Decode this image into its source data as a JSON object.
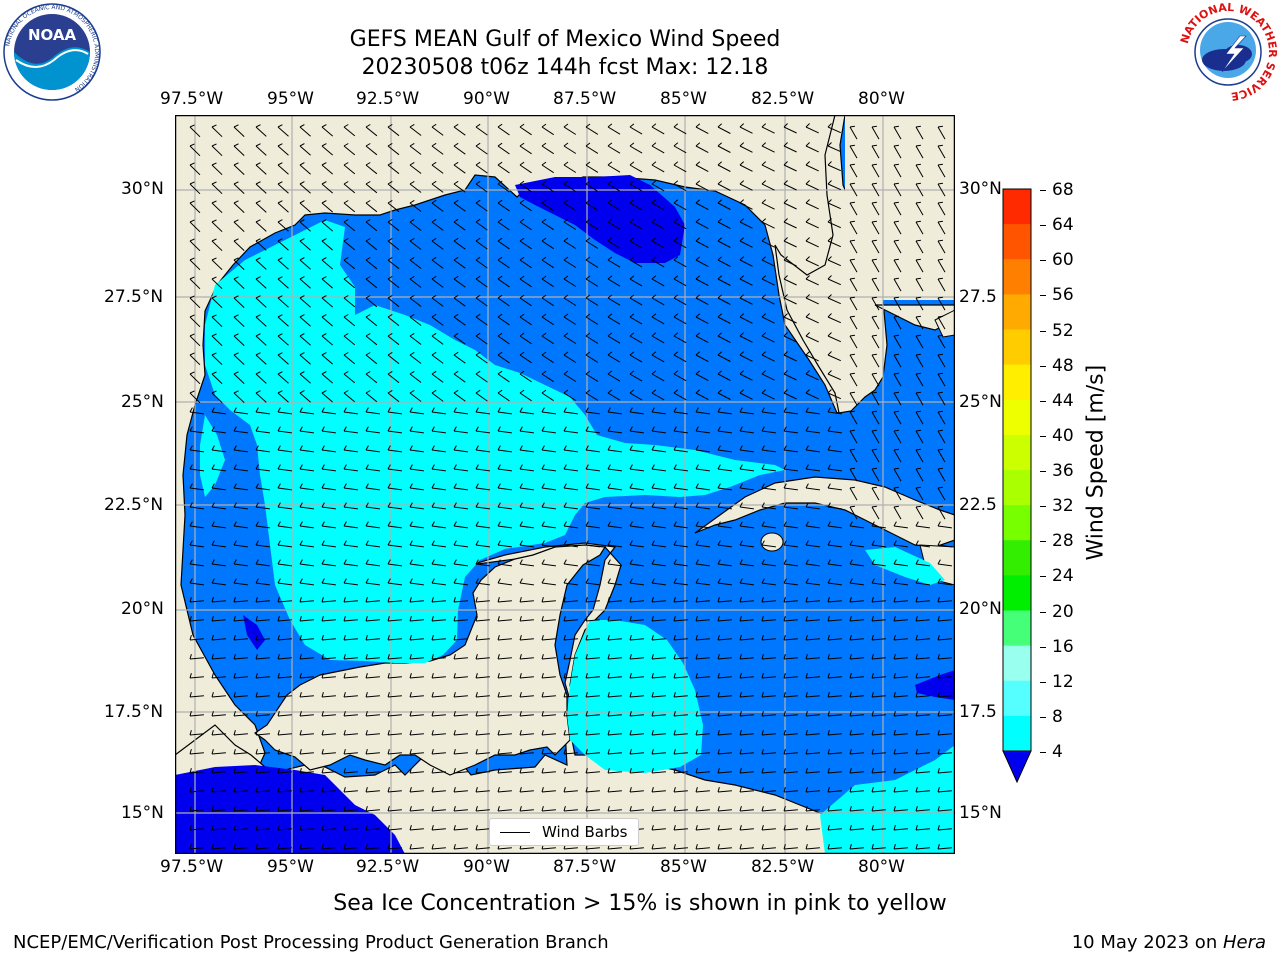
{
  "title": {
    "line1": "GEFS MEAN Gulf of Mexico Wind Speed",
    "line2": "20230508 t06z 144h fcst   Max: 12.18"
  },
  "map": {
    "lon_labels": [
      "97.5°W",
      "95°W",
      "92.5°W",
      "90°W",
      "87.5°W",
      "85°W",
      "82.5°W",
      "80°W"
    ],
    "lat_labels": [
      "30°N",
      "27.5°N",
      "25°N",
      "22.5°N",
      "20°N",
      "17.5°N",
      "15°N"
    ],
    "lat_labels_right": [
      "30°N",
      "27.5",
      "25°N",
      "22.5",
      "20°N",
      "17.5",
      "15°N"
    ],
    "colors": {
      "land": "#efedda",
      "speed_4_8": "#0077ff",
      "speed_8_12": "#00ffff",
      "speed_lt_4": "#0000ee"
    },
    "legend_label": "Wind Barbs"
  },
  "colorbar": {
    "label": "Wind Speed [m/s]",
    "ticks": [
      "68",
      "64",
      "60",
      "56",
      "52",
      "48",
      "44",
      "40",
      "36",
      "32",
      "28",
      "24",
      "20",
      "16",
      "12",
      "8",
      "4"
    ],
    "colors": [
      "#ff0000",
      "#ff2a00",
      "#ff5500",
      "#ff8000",
      "#ffaa00",
      "#ffcc00",
      "#ffee00",
      "#eeff00",
      "#ccff00",
      "#aaff00",
      "#77ff00",
      "#33ee00",
      "#00ee00",
      "#44ff77",
      "#99ffee",
      "#55ffff",
      "#00ffff",
      "#0077ff"
    ],
    "under_color": "#0000ee"
  },
  "subtitle": "Sea Ice Concentration > 15% is shown in pink to yellow",
  "footer": {
    "left": "NCEP/EMC/Verification Post Processing Product Generation Branch",
    "right_date": "10 May 2023 on ",
    "right_machine": "Hera"
  },
  "logos": {
    "noaa_text": "NOAA",
    "noaa_ring_text": "NATIONAL OCEANIC AND ATMOSPHERIC ADMINISTRATION",
    "nws_ring_text": "NATIONAL WEATHER SERVICE"
  }
}
